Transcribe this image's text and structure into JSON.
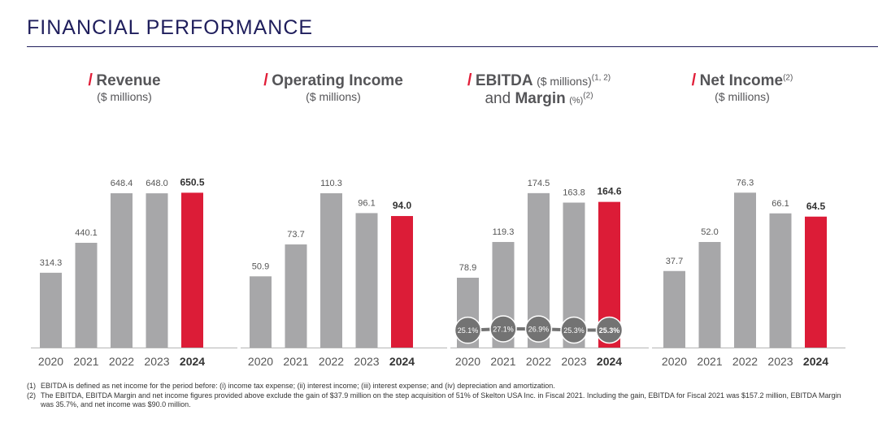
{
  "page_title": "FINANCIAL PERFORMANCE",
  "colors": {
    "bar_gray": "#a7a7a9",
    "bar_highlight": "#dc1c37",
    "title_navy": "#1f1e5c",
    "accent_red": "#e11d38",
    "margin_circle": "#737373"
  },
  "chart_titles": [
    {
      "slash": "/",
      "main": "Revenue",
      "sub": "($ millions)"
    },
    {
      "slash": "/",
      "main": "Operating Income",
      "sub": "($ millions)"
    },
    {
      "slash": "/",
      "main": "EBITDA",
      "main_suffix": "($ millions)",
      "main_sup": "(1, 2)",
      "line2_pre": "and ",
      "line2_bold": "Margin",
      "line2_suffix": "(%)",
      "line2_sup": "(2)"
    },
    {
      "slash": "/",
      "main": "Net Income",
      "main_sup": "(2)",
      "sub": "($ millions)"
    }
  ],
  "chart_data": [
    {
      "type": "bar",
      "title": "Revenue ($ millions)",
      "categories": [
        "2020",
        "2021",
        "2022",
        "2023",
        "2024"
      ],
      "values": [
        314.3,
        440.1,
        648.4,
        648.0,
        650.5
      ],
      "value_labels": [
        "314.3",
        "440.1",
        "648.4",
        "648.0",
        "650.5"
      ],
      "highlight_index": 4,
      "ylim": [
        0,
        870
      ]
    },
    {
      "type": "bar",
      "title": "Operating Income ($ millions)",
      "categories": [
        "2020",
        "2021",
        "2022",
        "2023",
        "2024"
      ],
      "values": [
        50.9,
        73.7,
        110.3,
        96.1,
        94.0
      ],
      "value_labels": [
        "50.9",
        "73.7",
        "110.3",
        "96.1",
        "94.0"
      ],
      "highlight_index": 4,
      "ylim": [
        0,
        148
      ]
    },
    {
      "type": "bar",
      "title": "EBITDA ($ millions) and Margin (%)",
      "categories": [
        "2020",
        "2021",
        "2022",
        "2023",
        "2024"
      ],
      "values": [
        78.9,
        119.3,
        174.5,
        163.8,
        164.6
      ],
      "value_labels": [
        "78.9",
        "119.3",
        "174.5",
        "163.8",
        "164.6"
      ],
      "highlight_index": 4,
      "ylim": [
        0,
        234
      ],
      "margin_series": {
        "name": "EBITDA Margin",
        "values": [
          25.1,
          27.1,
          26.9,
          25.3,
          25.3
        ],
        "labels": [
          "25.1%",
          "27.1%",
          "26.9%",
          "25.3%",
          "25.3%"
        ],
        "ylim": [
          0,
          300
        ]
      }
    },
    {
      "type": "bar",
      "title": "Net Income ($ millions)",
      "categories": [
        "2020",
        "2021",
        "2022",
        "2023",
        "2024"
      ],
      "values": [
        37.7,
        52.0,
        76.3,
        66.1,
        64.5
      ],
      "value_labels": [
        "37.7",
        "52.0",
        "76.3",
        "66.1",
        "64.5"
      ],
      "highlight_index": 4,
      "ylim": [
        0,
        102
      ]
    }
  ],
  "footnotes": [
    {
      "num": "(1)",
      "text": "EBITDA is defined as net income for the period before: (i) income tax expense; (ii) interest income; (iii) interest expense; and (iv) depreciation and amortization."
    },
    {
      "num": "(2)",
      "text": "The EBITDA, EBITDA Margin and net income figures provided above exclude the gain of $37.9 million on the step acquisition of 51% of Skelton USA Inc. in Fiscal 2021. Including the gain, EBITDA for Fiscal 2021 was $157.2 million, EBITDA Margin was 35.7%, and net income was $90.0 million."
    }
  ]
}
